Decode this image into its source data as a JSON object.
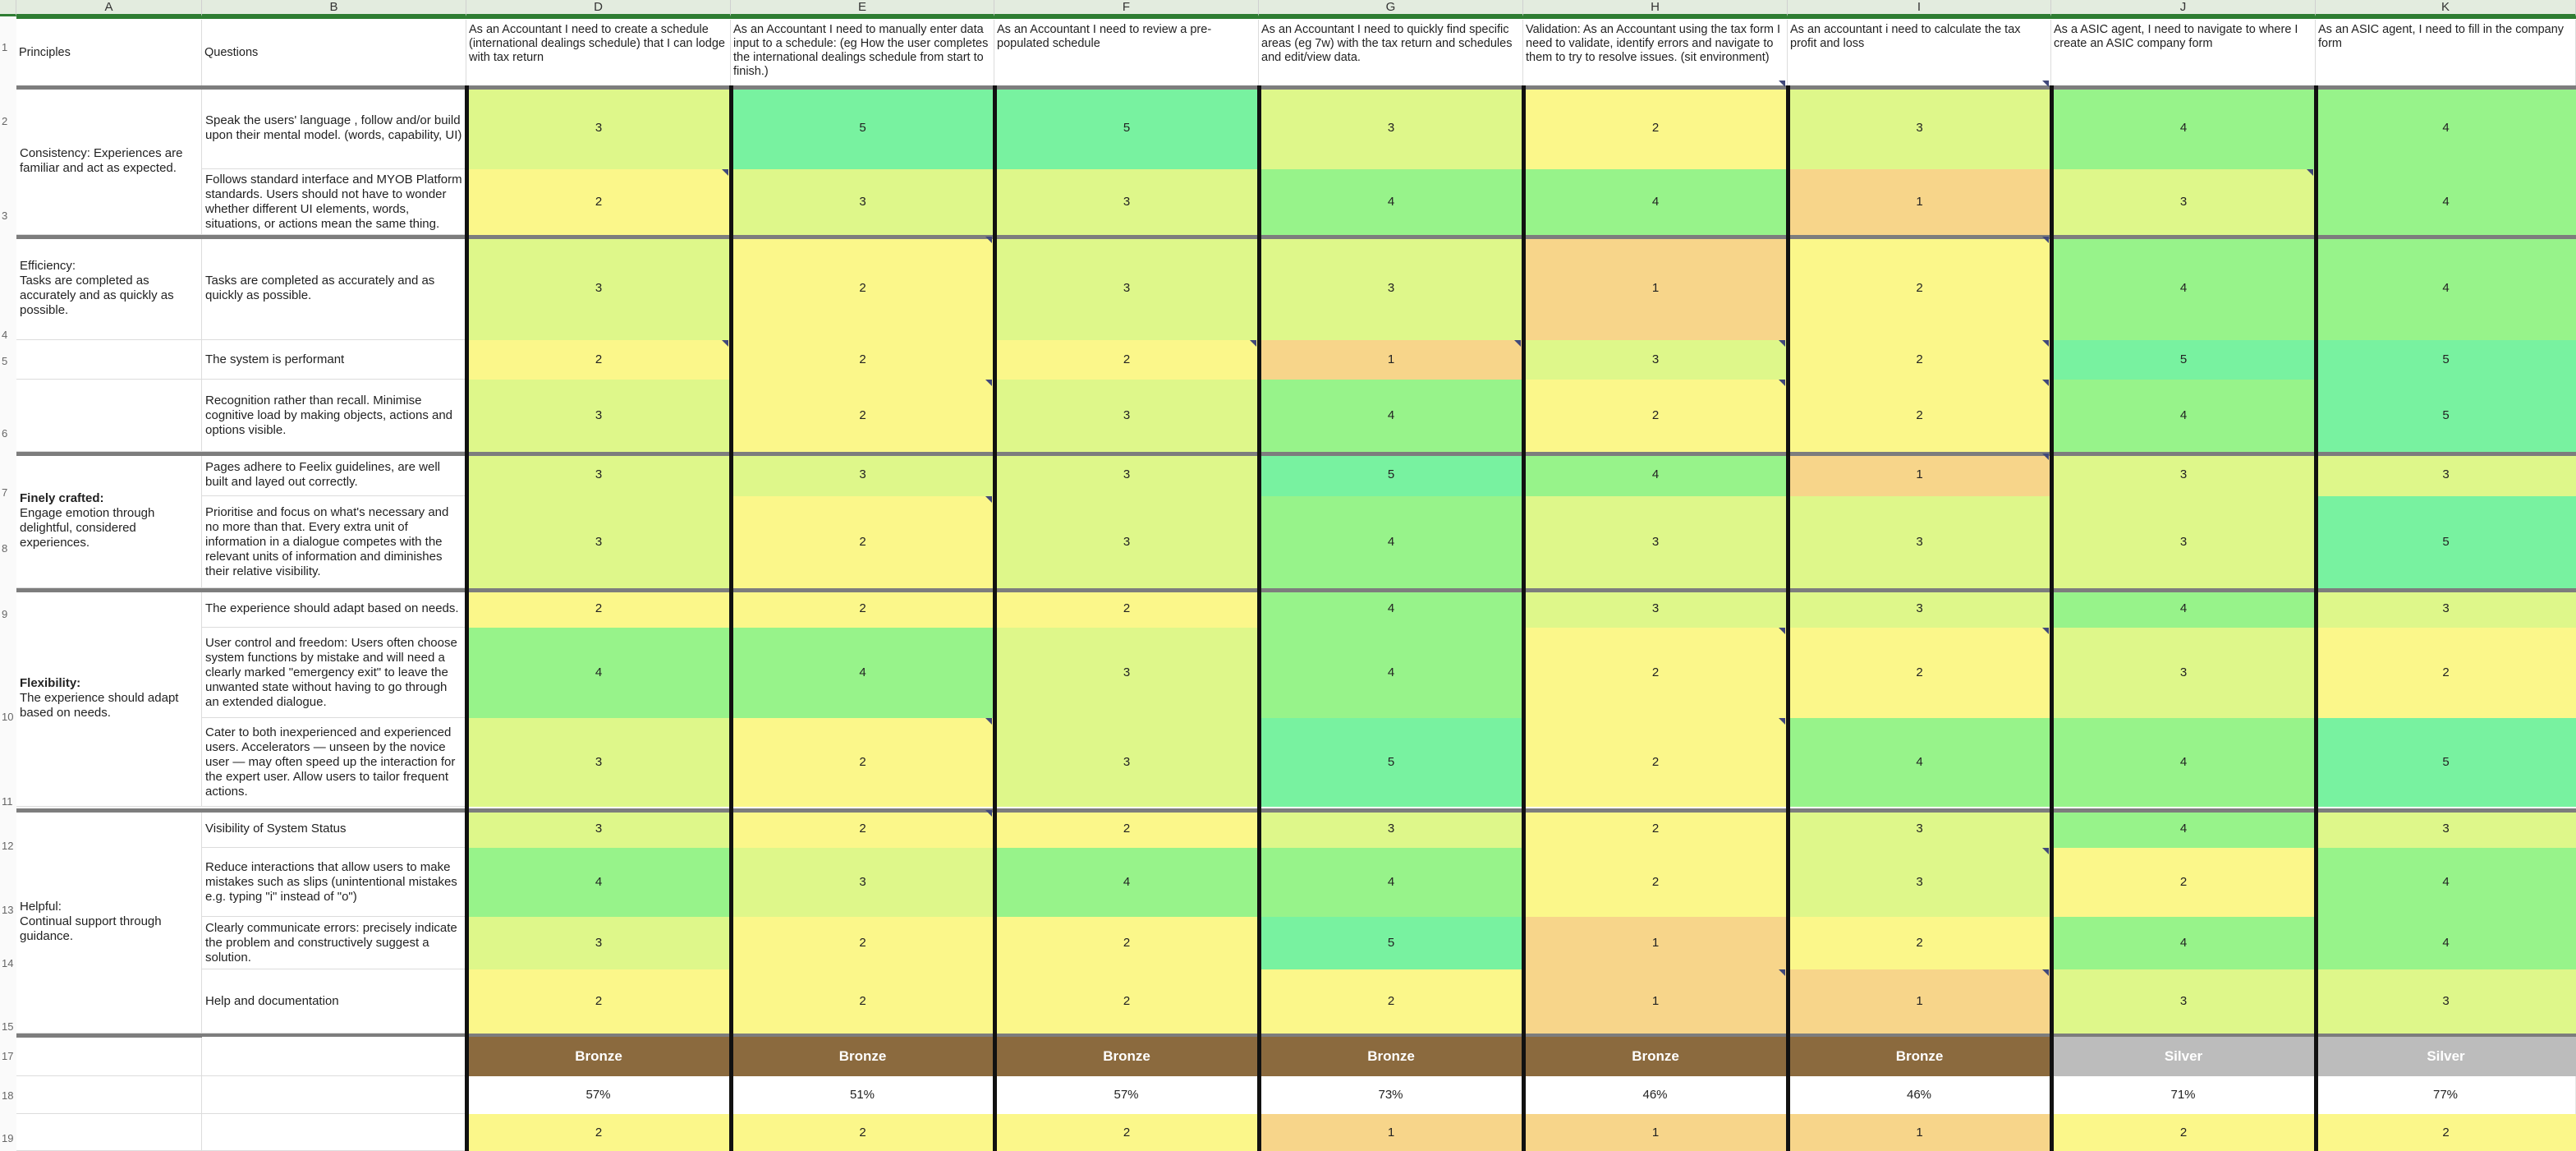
{
  "column_letters": [
    "A",
    "B",
    "D",
    "E",
    "F",
    "G",
    "H",
    "I",
    "J",
    "K"
  ],
  "header_row": {
    "principles": "Principles",
    "questions": "Questions",
    "stories": [
      "As an Accountant I need to create a schedule (international dealings schedule) that I can lodge with tax return",
      "As an Accountant I need to manually enter data input to a schedule: (eg How the user completes the international dealings schedule from start to finish.)",
      "As an Accountant I need to review a pre-populated schedule",
      "As an Accountant I need to quickly find specific areas (eg 7w) with the tax return and schedules and edit/view data.",
      "Validation: As an Accountant using the tax form I need to validate, identify errors and navigate to them to try to resolve issues. (sit environment)",
      "As an accountant i need to calculate the tax profit and loss",
      "As a ASIC agent, I need to navigate to where I create an ASIC company form",
      "As an ASIC agent, I need to fill in the company form"
    ]
  },
  "row_numbers": [
    "1",
    "2",
    "3",
    "4",
    "5",
    "6",
    "7",
    "8",
    "9",
    "10",
    "11",
    "12",
    "13",
    "14",
    "15",
    "17",
    "18",
    "19"
  ],
  "principles": {
    "consistency": "Consistency: Experiences are familiar and act as expected.",
    "efficiency_title": "Efficiency:",
    "efficiency_body": "Tasks are completed as accurately and as quickly as possible.",
    "finely_title": "Finely crafted:",
    "finely_body": "Engage emotion through delightful, considered experiences.",
    "flexibility_title": "Flexibility:",
    "flexibility_body": "The experience should adapt based on needs.",
    "helpful_title": "Helpful:",
    "helpful_body": "Continual support through guidance."
  },
  "questions": [
    "Speak the users' language , follow and/or build upon their mental model. (words, capability, UI)",
    "Follows standard interface and MYOB Platform standards. Users should not have to wonder whether different UI elements, words, situations, or actions mean the same thing.",
    "Tasks are completed as accurately and as quickly as possible.",
    "The system is performant",
    "Recognition rather than recall. Minimise cognitive load by making objects, actions and options visible.",
    "Pages adhere to Feelix guidelines, are well built and layed out correctly.",
    "Prioritise and focus on what's necessary and no more than that. Every extra unit of information in a dialogue competes with the relevant units of information and diminishes their relative visibility.",
    "The experience should adapt based on needs.",
    "User control and freedom: Users often choose system functions by mistake and will need a clearly marked \"emergency exit\" to leave the unwanted state without having to go through an extended dialogue.",
    "Cater to both inexperienced and experienced users. Accelerators — unseen by the novice user — may often speed up the interaction for the expert user. Allow users to tailor frequent actions.",
    "Visibility of System Status",
    "Reduce interactions that allow users to make mistakes such as slips (unintentional mistakes e.g. typing \"i\" instead of \"o\")",
    "Clearly communicate errors: precisely indicate the problem and constructively suggest a solution.",
    "Help and documentation"
  ],
  "scores": [
    [
      3,
      5,
      5,
      3,
      2,
      3,
      4,
      4
    ],
    [
      2,
      3,
      3,
      4,
      4,
      1,
      3,
      4
    ],
    [
      3,
      2,
      3,
      3,
      1,
      2,
      4,
      4
    ],
    [
      2,
      2,
      2,
      1,
      3,
      2,
      5,
      5
    ],
    [
      3,
      2,
      3,
      4,
      2,
      2,
      4,
      5
    ],
    [
      3,
      3,
      3,
      5,
      4,
      1,
      3,
      3
    ],
    [
      3,
      2,
      3,
      4,
      3,
      3,
      3,
      5
    ],
    [
      2,
      2,
      2,
      4,
      3,
      3,
      4,
      3
    ],
    [
      4,
      4,
      3,
      4,
      2,
      2,
      3,
      2
    ],
    [
      3,
      2,
      3,
      5,
      2,
      4,
      4,
      5
    ],
    [
      3,
      2,
      2,
      3,
      2,
      3,
      4,
      3
    ],
    [
      4,
      3,
      4,
      4,
      2,
      3,
      2,
      4
    ],
    [
      3,
      2,
      2,
      5,
      1,
      2,
      4,
      4
    ],
    [
      2,
      2,
      2,
      2,
      1,
      1,
      3,
      3
    ]
  ],
  "medals": [
    "Bronze",
    "Bronze",
    "Bronze",
    "Bronze",
    "Bronze",
    "Bronze",
    "Silver",
    "Silver"
  ],
  "percentages": [
    "57%",
    "51%",
    "57%",
    "73%",
    "46%",
    "46%",
    "71%",
    "77%"
  ],
  "bottom_scores": [
    2,
    2,
    2,
    1,
    1,
    1,
    2,
    2
  ],
  "colors": {
    "score_1": "#f7d58a",
    "score_2": "#fbf78a",
    "score_3": "#def78a",
    "score_4": "#97f38a",
    "score_5": "#78f2a0",
    "bronze": "#8b6a3e",
    "silver": "#bcbcbc",
    "comment_marker": "#40487a"
  }
}
